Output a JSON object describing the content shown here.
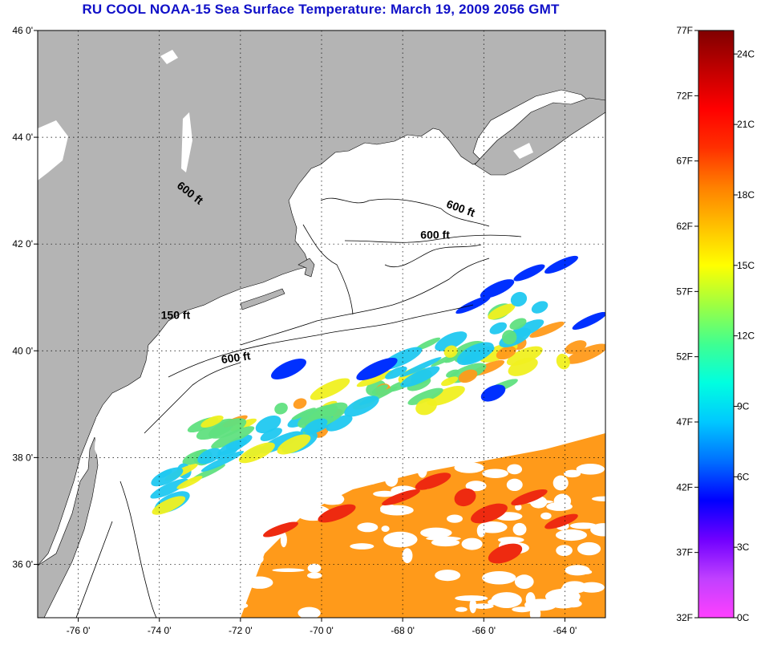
{
  "title": "RU COOL  NOAA-15  Sea Surface Temperature:  March 19, 2009 2056 GMT",
  "map": {
    "lon_range": [
      -77,
      -63
    ],
    "lat_range": [
      35,
      46
    ],
    "lat_ticks": [
      {
        "value": 46,
        "label": "46 0'"
      },
      {
        "value": 44,
        "label": "44 0'"
      },
      {
        "value": 42,
        "label": "42 0'"
      },
      {
        "value": 40,
        "label": "40 0'"
      },
      {
        "value": 38,
        "label": "38 0'"
      },
      {
        "value": 36,
        "label": "36 0'"
      }
    ],
    "lon_ticks": [
      {
        "value": -76,
        "label": "-76 0'"
      },
      {
        "value": -74,
        "label": "-74 0'"
      },
      {
        "value": -72,
        "label": "-72 0'"
      },
      {
        "value": -70,
        "label": "-70 0'"
      },
      {
        "value": -68,
        "label": "-68 0'"
      },
      {
        "value": -66,
        "label": "-66 0'"
      },
      {
        "value": -64,
        "label": "-64 0'"
      }
    ],
    "contour_labels": [
      {
        "text": "600 ft",
        "lon": -73.3,
        "lat": 42.9,
        "angle": 38
      },
      {
        "text": "600 ft",
        "lon": -66.6,
        "lat": 42.6,
        "angle": 20
      },
      {
        "text": "600 ft",
        "lon": -67.2,
        "lat": 42.1,
        "angle": 0
      },
      {
        "text": "150 ft",
        "lon": -73.6,
        "lat": 40.6,
        "angle": 0
      },
      {
        "text": "600 ft",
        "lon": -72.1,
        "lat": 39.8,
        "angle": -8
      }
    ],
    "land_color": "#b4b4b4",
    "grid": true
  },
  "colorbar": {
    "gradient": [
      "#ff40ff",
      "#c040ff",
      "#7000ff",
      "#0000ff",
      "#0070ff",
      "#00c8ff",
      "#00ffe0",
      "#40ff90",
      "#a0ff40",
      "#ffff00",
      "#ffc000",
      "#ff8000",
      "#ff3000",
      "#ff0000",
      "#c00000",
      "#800000"
    ],
    "f_labels": [
      {
        "value": 77,
        "label": "77F"
      },
      {
        "value": 72,
        "label": "72F"
      },
      {
        "value": 67,
        "label": "67F"
      },
      {
        "value": 62,
        "label": "62F"
      },
      {
        "value": 57,
        "label": "57F"
      },
      {
        "value": 52,
        "label": "52F"
      },
      {
        "value": 47,
        "label": "47F"
      },
      {
        "value": 42,
        "label": "42F"
      },
      {
        "value": 37,
        "label": "37F"
      },
      {
        "value": 32,
        "label": "32F"
      }
    ],
    "c_labels": [
      {
        "value": 24,
        "label": "24C"
      },
      {
        "value": 21,
        "label": "21C"
      },
      {
        "value": 18,
        "label": "18C"
      },
      {
        "value": 15,
        "label": "15C"
      },
      {
        "value": 12,
        "label": "12C"
      },
      {
        "value": 9,
        "label": "9C"
      },
      {
        "value": 6,
        "label": "6C"
      },
      {
        "value": 3,
        "label": "3C"
      },
      {
        "value": 0,
        "label": "0C"
      }
    ]
  },
  "sst_colors": {
    "cold_blue": "#0030ff",
    "cyan": "#20c8f0",
    "green": "#60e080",
    "yellow": "#f0f020",
    "orange": "#ff9a1a",
    "red": "#ee2a10"
  }
}
